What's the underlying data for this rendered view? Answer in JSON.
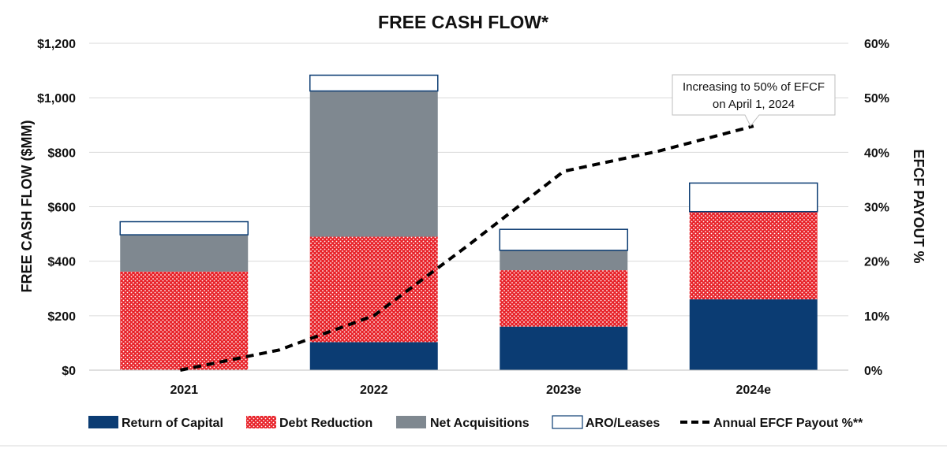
{
  "chart_data": {
    "type": "bar",
    "stacked": true,
    "title": "FREE CASH FLOW*",
    "categories": [
      "2021",
      "2022",
      "2023e",
      "2024e"
    ],
    "ylabel": "FREE CASH FLOW ($MM)",
    "y2label": "EFCF PAYOUT %",
    "ylim": [
      0,
      1200
    ],
    "y2lim": [
      0,
      60
    ],
    "y_ticks": [
      "$0",
      "$200",
      "$400",
      "$600",
      "$800",
      "$1,000",
      "$1,200"
    ],
    "y2_ticks": [
      "0%",
      "10%",
      "20%",
      "30%",
      "40%",
      "50%",
      "60%"
    ],
    "grid": true,
    "series": [
      {
        "name": "Return of Capital",
        "color": "#0b3c73",
        "values": [
          0,
          103,
          160,
          260
        ]
      },
      {
        "name": "Debt Reduction",
        "color": "#e8232a",
        "values": [
          362,
          387,
          207,
          322
        ]
      },
      {
        "name": "Net Acquisitions",
        "color": "#7f8890",
        "values": [
          135,
          535,
          73,
          0
        ]
      },
      {
        "name": "ARO/Leases",
        "color": "#ffffff",
        "values": [
          48,
          58,
          77,
          105
        ]
      }
    ],
    "line_series": {
      "name": "Annual EFCF Payout %**",
      "axis": "right",
      "x": [
        2020.98,
        2021.5,
        2022,
        2022.5,
        2023,
        2023.5,
        2024
      ],
      "values": [
        0,
        3.7,
        10,
        23,
        36.5,
        40.2,
        44.8
      ]
    },
    "annotation": {
      "lines": [
        "Increasing to 50% of EFCF",
        "on April 1, 2024"
      ]
    },
    "legend": {
      "position": "bottom",
      "labels": [
        "Return of Capital",
        "Debt Reduction",
        "Net Acquisitions",
        "ARO/Leases",
        "Annual EFCF Payout %**"
      ]
    }
  }
}
